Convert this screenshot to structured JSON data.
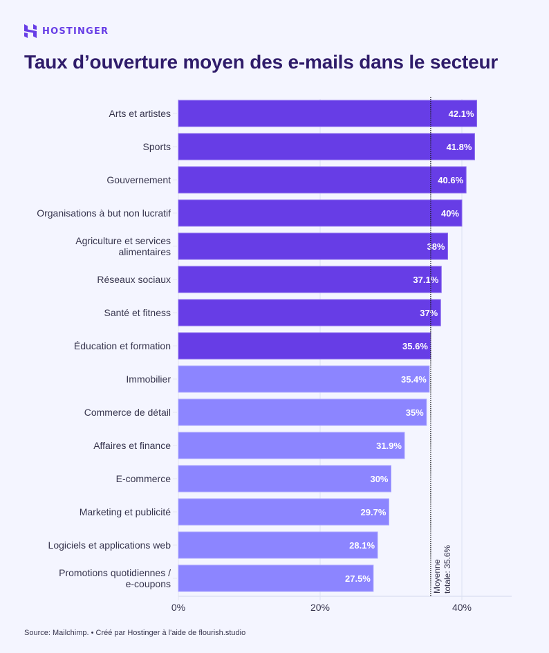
{
  "brand": {
    "name": "HOSTINGER",
    "logo_icon": "hostinger-h-logo-icon",
    "color": "#673DE6"
  },
  "chart_data": {
    "type": "bar",
    "orientation": "horizontal",
    "title": "Taux d’ouverture moyen des e-mails dans le secteur",
    "xlabel": "",
    "ylabel": "",
    "categories": [
      [
        "Arts et artistes"
      ],
      [
        "Sports"
      ],
      [
        "Gouvernement"
      ],
      [
        "Organisations à but non lucratif"
      ],
      [
        "Agriculture et services",
        "alimentaires"
      ],
      [
        "Réseaux sociaux"
      ],
      [
        "Santé et fitness"
      ],
      [
        "Éducation et formation"
      ],
      [
        "Immobilier"
      ],
      [
        "Commerce de détail"
      ],
      [
        "Affaires et finance"
      ],
      [
        "E-commerce"
      ],
      [
        "Marketing et publicité"
      ],
      [
        "Logiciels et applications web"
      ],
      [
        "Promotions quotidiennes /",
        "e-coupons"
      ]
    ],
    "values": [
      42.1,
      41.8,
      40.6,
      40,
      38,
      37.1,
      37,
      35.6,
      35.4,
      35,
      31.9,
      30,
      29.7,
      28.1,
      27.5
    ],
    "value_labels": [
      "42.1%",
      "41.8%",
      "40.6%",
      "40%",
      "38%",
      "37.1%",
      "37%",
      "35.6%",
      "35.4%",
      "35%",
      "31.9%",
      "30%",
      "29.7%",
      "28.1%",
      "27.5%"
    ],
    "highlight": [
      true,
      true,
      true,
      true,
      true,
      true,
      true,
      true,
      false,
      false,
      false,
      false,
      false,
      false,
      false
    ],
    "colors": {
      "above_average": "#673DE6",
      "below_average": "#8C85FF",
      "label_text": "#FFFFFF"
    },
    "xlim": [
      0,
      47
    ],
    "xticks": [
      0,
      20,
      40
    ],
    "xtick_labels": [
      "0%",
      "20%",
      "40%"
    ],
    "grid": true,
    "reference_line": {
      "value": 35.6,
      "label": [
        "Moyenne",
        "totale: 35.6%"
      ],
      "style": "dotted"
    }
  },
  "footer": {
    "source": "Source: Mailchimp. • Créé par Hostinger à l'aide de flourish.studio"
  }
}
